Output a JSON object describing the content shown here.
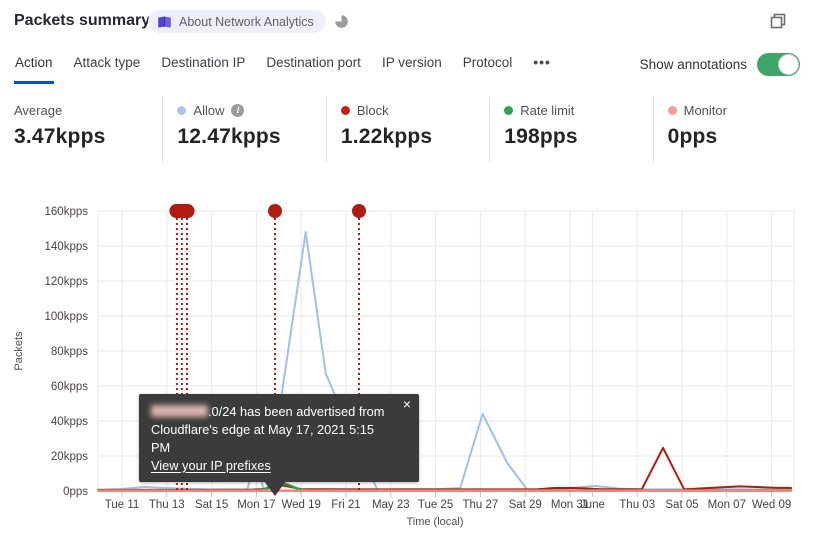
{
  "header": {
    "title": "Packets summary",
    "badge_label": "About Network Analytics"
  },
  "tabs": {
    "items": [
      {
        "label": "Action",
        "active": true
      },
      {
        "label": "Attack type",
        "active": false
      },
      {
        "label": "Destination IP",
        "active": false
      },
      {
        "label": "Destination port",
        "active": false
      },
      {
        "label": "IP version",
        "active": false
      },
      {
        "label": "Protocol",
        "active": false
      }
    ],
    "more_label": "•••"
  },
  "annotations_toggle": {
    "label": "Show annotations",
    "on": true,
    "color": "#3fa66a"
  },
  "stats": [
    {
      "label": "Average",
      "value": "3.47kpps"
    },
    {
      "label": "Allow",
      "value": "12.47kpps",
      "dot_color": "#a9c7e8",
      "has_info": true,
      "info_glyph": "i"
    },
    {
      "label": "Block",
      "value": "1.22kpps",
      "dot_color": "#c2221a"
    },
    {
      "label": "Rate limit",
      "value": "198pps",
      "dot_color": "#2da44e"
    },
    {
      "label": "Monitor",
      "value": "0pps",
      "dot_color": "#f79b95"
    }
  ],
  "tooltip": {
    "line1_suffix": ".0/24 has been advertised from",
    "line2": "Cloudflare's edge at May 17, 2021 5:15 PM",
    "link_label": "View your IP prefixes",
    "close_label": "×"
  },
  "chart_data": {
    "type": "line",
    "xlabel": "Time (local)",
    "ylabel": "Packets",
    "x_unit": "days since May 10 2021 (local)",
    "y_unit": "kpps",
    "ylim": [
      0,
      160
    ],
    "grid": true,
    "legend_position": "stats-row-above",
    "y_ticks": [
      {
        "v": 0,
        "label": "0pps"
      },
      {
        "v": 20,
        "label": "20kpps"
      },
      {
        "v": 40,
        "label": "40kpps"
      },
      {
        "v": 60,
        "label": "60kpps"
      },
      {
        "v": 80,
        "label": "80kpps"
      },
      {
        "v": 100,
        "label": "100kpps"
      },
      {
        "v": 120,
        "label": "120kpps"
      },
      {
        "v": 140,
        "label": "140kpps"
      },
      {
        "v": 160,
        "label": "160kpps"
      }
    ],
    "x_ticks": [
      {
        "d": 1,
        "label": "Tue 11"
      },
      {
        "d": 3,
        "label": "Thu 13"
      },
      {
        "d": 5,
        "label": "Sat 15"
      },
      {
        "d": 7,
        "label": "Mon 17"
      },
      {
        "d": 9,
        "label": "Wed 19"
      },
      {
        "d": 11,
        "label": "Fri 21"
      },
      {
        "d": 13,
        "label": "May 23"
      },
      {
        "d": 15,
        "label": "Tue 25"
      },
      {
        "d": 17,
        "label": "Thu 27"
      },
      {
        "d": 19,
        "label": "Sat 29"
      },
      {
        "d": 21,
        "label": "Mon 31"
      },
      {
        "d": 22,
        "label": "June"
      },
      {
        "d": 24,
        "label": "Thu 03"
      },
      {
        "d": 26,
        "label": "Sat 05"
      },
      {
        "d": 28,
        "label": "Mon 07"
      },
      {
        "d": 30,
        "label": "Wed 09"
      }
    ],
    "grid_extra_days": [
      -0.07,
      31
    ],
    "series": [
      {
        "name": "Allow",
        "color": "#9fc1e6",
        "width": 2,
        "points": [
          [
            -0.1,
            0.6
          ],
          [
            0.9,
            1.1
          ],
          [
            2.0,
            2.3
          ],
          [
            2.9,
            1.7
          ],
          [
            4.9,
            0.9
          ],
          [
            6.6,
            1.1
          ],
          [
            7.0,
            20.5
          ],
          [
            7.3,
            1.7
          ],
          [
            7.5,
            1.0
          ],
          [
            9.2,
            148
          ],
          [
            10.1,
            67
          ],
          [
            10.4,
            58
          ],
          [
            12.4,
            0.6
          ],
          [
            13.1,
            0.9
          ],
          [
            15.1,
            1.1
          ],
          [
            16.1,
            1.7
          ],
          [
            17.1,
            44
          ],
          [
            18.2,
            16
          ],
          [
            19.1,
            0.6
          ],
          [
            20.6,
            1.1
          ],
          [
            22.1,
            2.9
          ],
          [
            23.2,
            1.4
          ],
          [
            24.3,
            1.0
          ],
          [
            26.8,
            0.9
          ],
          [
            30.9,
            0.9
          ]
        ]
      },
      {
        "name": "Block",
        "color": "#b01b12",
        "width": 2,
        "points": [
          [
            -0.1,
            0.6
          ],
          [
            6.5,
            0.6
          ],
          [
            7.3,
            1.1
          ],
          [
            8.1,
            3.4
          ],
          [
            9.0,
            1.1
          ],
          [
            11.6,
            0.9
          ],
          [
            19.5,
            0.9
          ],
          [
            20.3,
            1.7
          ],
          [
            21.2,
            1.7
          ],
          [
            22.3,
            1.1
          ],
          [
            24.2,
            0.9
          ],
          [
            25.15,
            24.6
          ],
          [
            26.1,
            0.9
          ],
          [
            27.4,
            1.9
          ],
          [
            28.6,
            2.6
          ],
          [
            30.1,
            1.9
          ],
          [
            30.9,
            1.7
          ]
        ]
      },
      {
        "name": "Rate limit",
        "color": "#2f9e44",
        "width": 2.4,
        "points": [
          [
            -0.1,
            0.3
          ],
          [
            7.2,
            0.3
          ],
          [
            7.6,
            2.3
          ],
          [
            8.1,
            5.1
          ],
          [
            8.9,
            1.1
          ],
          [
            9.3,
            0.3
          ],
          [
            30.9,
            0.3
          ]
        ]
      },
      {
        "name": "Monitor",
        "color": "#f2857d",
        "width": 2.5,
        "points": [
          [
            -0.1,
            0.1
          ],
          [
            30.9,
            0.1
          ]
        ]
      }
    ],
    "annotations": {
      "color": "#b01b12",
      "cluster_line_days": [
        3.45,
        3.675,
        3.9
      ],
      "single_marker_days": [
        7.83,
        11.58
      ]
    }
  }
}
